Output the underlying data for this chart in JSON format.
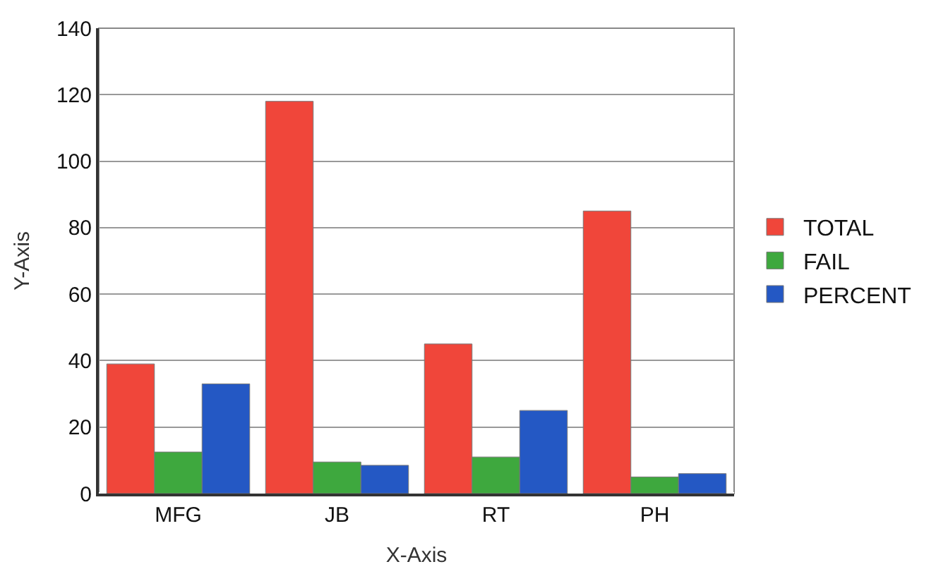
{
  "chart_data": {
    "type": "bar",
    "xlabel": "X-Axis",
    "ylabel": "Y-Axis",
    "categories": [
      "MFG",
      "JB",
      "RT",
      "PH"
    ],
    "series": [
      {
        "name": "TOTAL",
        "color": "#f0463a",
        "values": [
          39,
          118,
          45,
          85
        ]
      },
      {
        "name": "FAIL",
        "color": "#3ea83e",
        "values": [
          12.5,
          9.5,
          11,
          5
        ]
      },
      {
        "name": "PERCENT",
        "color": "#2458c4",
        "values": [
          33,
          8.5,
          25,
          6
        ]
      }
    ],
    "ylim": [
      0,
      140
    ],
    "yticks": [
      0,
      20,
      40,
      60,
      80,
      100,
      120,
      140
    ],
    "grid": "y",
    "legend": "right"
  }
}
